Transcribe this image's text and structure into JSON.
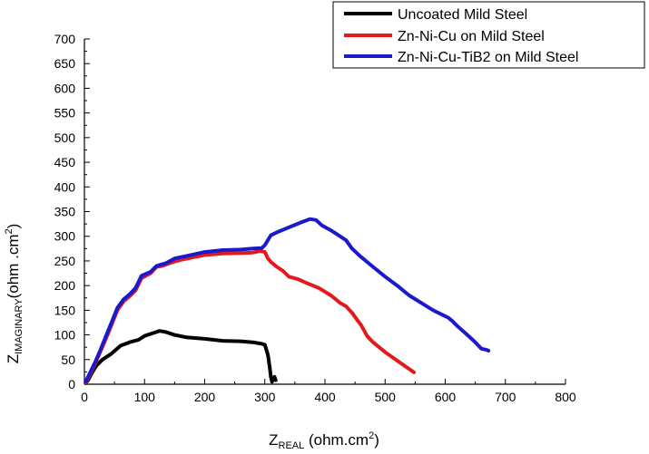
{
  "chart_data": {
    "type": "line",
    "xlabel": {
      "main": "Z",
      "sub": "REAL",
      "unit": " (ohm.cm",
      "sup": "2",
      "close": ")"
    },
    "ylabel": {
      "main": "Z",
      "sub": "IMAGINARY",
      "unit": "(ohm .cm",
      "sup": "2",
      "close": ")"
    },
    "xlim": [
      0,
      800
    ],
    "ylim": [
      0,
      700
    ],
    "xticks": [
      0,
      100,
      200,
      300,
      400,
      500,
      600,
      700,
      800
    ],
    "yticks": [
      0,
      50,
      100,
      150,
      200,
      250,
      300,
      350,
      400,
      450,
      500,
      550,
      600,
      650,
      700
    ],
    "grid": false,
    "legend_position": "top-right",
    "series": [
      {
        "name": "Uncoated Mild Steel",
        "color": "#000000",
        "points": [
          [
            2,
            2
          ],
          [
            6,
            8
          ],
          [
            12,
            22
          ],
          [
            20,
            38
          ],
          [
            30,
            50
          ],
          [
            45,
            62
          ],
          [
            60,
            78
          ],
          [
            75,
            85
          ],
          [
            90,
            90
          ],
          [
            100,
            98
          ],
          [
            115,
            104
          ],
          [
            125,
            108
          ],
          [
            135,
            106
          ],
          [
            150,
            100
          ],
          [
            170,
            95
          ],
          [
            200,
            92
          ],
          [
            230,
            88
          ],
          [
            260,
            87
          ],
          [
            280,
            85
          ],
          [
            295,
            82
          ],
          [
            300,
            80
          ],
          [
            305,
            60
          ],
          [
            308,
            35
          ],
          [
            310,
            15
          ],
          [
            312,
            5
          ],
          [
            316,
            15
          ],
          [
            318,
            8
          ],
          [
            312,
            12
          ]
        ]
      },
      {
        "name": "Zn-Ni-Cu on Mild Steel",
        "color": "#e31a1c",
        "points": [
          [
            2,
            3
          ],
          [
            6,
            12
          ],
          [
            10,
            22
          ],
          [
            18,
            42
          ],
          [
            25,
            62
          ],
          [
            35,
            90
          ],
          [
            45,
            120
          ],
          [
            55,
            150
          ],
          [
            65,
            168
          ],
          [
            75,
            178
          ],
          [
            85,
            190
          ],
          [
            95,
            215
          ],
          [
            110,
            225
          ],
          [
            120,
            238
          ],
          [
            130,
            240
          ],
          [
            145,
            247
          ],
          [
            160,
            252
          ],
          [
            180,
            257
          ],
          [
            200,
            262
          ],
          [
            230,
            265
          ],
          [
            260,
            266
          ],
          [
            280,
            267
          ],
          [
            292,
            270
          ],
          [
            300,
            268
          ],
          [
            305,
            255
          ],
          [
            310,
            248
          ],
          [
            320,
            238
          ],
          [
            330,
            230
          ],
          [
            340,
            218
          ],
          [
            355,
            213
          ],
          [
            370,
            205
          ],
          [
            390,
            195
          ],
          [
            410,
            180
          ],
          [
            425,
            165
          ],
          [
            435,
            158
          ],
          [
            445,
            145
          ],
          [
            455,
            128
          ],
          [
            460,
            120
          ],
          [
            470,
            98
          ],
          [
            480,
            85
          ],
          [
            500,
            65
          ],
          [
            520,
            48
          ],
          [
            535,
            35
          ],
          [
            548,
            24
          ]
        ]
      },
      {
        "name": "Zn-Ni-Cu-TiB2 on Mild Steel",
        "color": "#1a1acc",
        "points": [
          [
            2,
            5
          ],
          [
            6,
            15
          ],
          [
            10,
            25
          ],
          [
            18,
            45
          ],
          [
            25,
            65
          ],
          [
            35,
            95
          ],
          [
            45,
            125
          ],
          [
            55,
            155
          ],
          [
            65,
            172
          ],
          [
            75,
            182
          ],
          [
            85,
            195
          ],
          [
            95,
            220
          ],
          [
            110,
            228
          ],
          [
            120,
            240
          ],
          [
            135,
            245
          ],
          [
            150,
            255
          ],
          [
            170,
            260
          ],
          [
            200,
            268
          ],
          [
            230,
            272
          ],
          [
            260,
            273
          ],
          [
            280,
            275
          ],
          [
            295,
            276
          ],
          [
            300,
            282
          ],
          [
            305,
            292
          ],
          [
            310,
            302
          ],
          [
            320,
            308
          ],
          [
            340,
            318
          ],
          [
            360,
            328
          ],
          [
            375,
            335
          ],
          [
            385,
            333
          ],
          [
            395,
            322
          ],
          [
            410,
            312
          ],
          [
            425,
            300
          ],
          [
            435,
            292
          ],
          [
            445,
            275
          ],
          [
            460,
            258
          ],
          [
            480,
            238
          ],
          [
            500,
            218
          ],
          [
            520,
            200
          ],
          [
            540,
            180
          ],
          [
            560,
            165
          ],
          [
            580,
            150
          ],
          [
            600,
            138
          ],
          [
            605,
            135
          ],
          [
            608,
            132
          ],
          [
            612,
            128
          ],
          [
            620,
            118
          ],
          [
            635,
            102
          ],
          [
            650,
            85
          ],
          [
            660,
            72
          ],
          [
            668,
            70
          ],
          [
            672,
            68
          ]
        ]
      }
    ]
  }
}
